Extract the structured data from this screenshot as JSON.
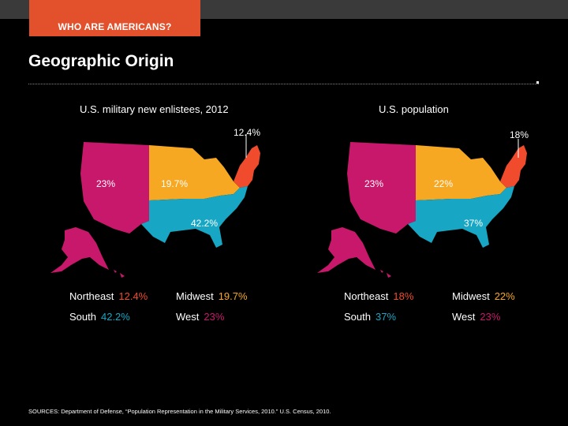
{
  "header": {
    "tag": "WHO ARE AMERICANS?"
  },
  "title": "Geographic Origin",
  "left": {
    "subtitle": "U.S. military new enlistees, 2012",
    "labels": {
      "northeast": "12.4%",
      "midwest": "19.7%",
      "south": "42.2%",
      "west": "23%"
    },
    "legend": [
      {
        "name": "Northeast",
        "value": "12.4%"
      },
      {
        "name": "Midwest",
        "value": "19.7%"
      },
      {
        "name": "South",
        "value": "42.2%"
      },
      {
        "name": "West",
        "value": "23%"
      }
    ]
  },
  "right": {
    "subtitle": "U.S. population",
    "labels": {
      "northeast": "18%",
      "midwest": "22%",
      "south": "37%",
      "west": "23%"
    },
    "legend": [
      {
        "name": "Northeast",
        "value": "18%"
      },
      {
        "name": "Midwest",
        "value": "22%"
      },
      {
        "name": "South",
        "value": "37%"
      },
      {
        "name": "West",
        "value": "23%"
      }
    ]
  },
  "colors": {
    "northeast": "#ef4b2c",
    "midwest": "#f7a823",
    "south": "#17a7c4",
    "west": "#c8186b",
    "tag": "#e2512b"
  },
  "source": "SOURCES: Department of Defense, “Population Representation in the Military Services, 2010.” U.S. Census, 2010."
}
